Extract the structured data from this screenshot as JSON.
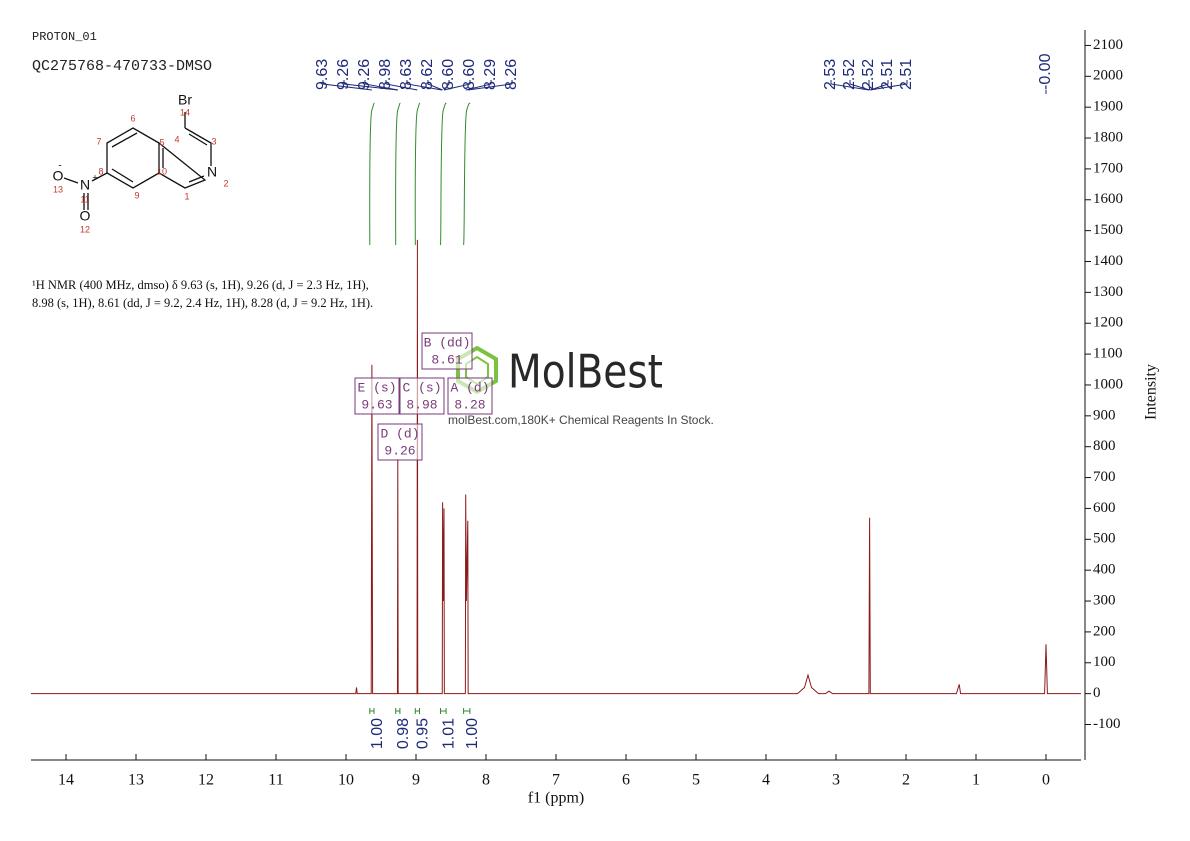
{
  "chart_data": {
    "type": "line",
    "header": "PROTON_01",
    "title": "QC275768-470733-DMSO",
    "description": "¹H NMR (400 MHz, dmso) δ 9.63 (s, 1H), 9.26 (d, J = 2.3 Hz, 1H), 8.98 (s, 1H), 8.61 (dd, J = 9.2, 2.4 Hz, 1H), 8.28 (d, J = 9.2 Hz, 1H).",
    "xlabel": "f1 (ppm)",
    "ylabel": "Intensity",
    "color": "#8b1a1a",
    "xlim": [
      14.5,
      -0.5
    ],
    "xticks": [
      14,
      13,
      12,
      11,
      10,
      9,
      8,
      7,
      6,
      5,
      4,
      3,
      2,
      1,
      0
    ],
    "ylim": [
      -215,
      2150
    ],
    "yticks": [
      -100,
      0,
      100,
      200,
      300,
      400,
      500,
      600,
      700,
      800,
      900,
      1000,
      1100,
      1200,
      1300,
      1400,
      1500,
      1600,
      1700,
      1800,
      1900,
      2000,
      2100
    ],
    "x": [
      14.5,
      9.9,
      9.86,
      9.85,
      9.84,
      9.66,
      9.64,
      9.63,
      9.62,
      9.6,
      9.28,
      9.265,
      9.26,
      9.255,
      9.24,
      9.0,
      8.985,
      8.98,
      8.975,
      8.96,
      8.64,
      8.625,
      8.62,
      8.61,
      8.6,
      8.595,
      8.58,
      8.31,
      8.295,
      8.29,
      8.28,
      8.26,
      8.255,
      8.24,
      3.55,
      3.45,
      3.4,
      3.35,
      3.25,
      3.15,
      3.1,
      3.05,
      2.56,
      2.53,
      2.52,
      2.51,
      2.48,
      1.28,
      1.24,
      1.22,
      1.18,
      0.02,
      0.0,
      -0.02,
      -0.5
    ],
    "values": [
      0,
      0,
      0,
      20,
      0,
      0,
      0,
      1065,
      0,
      0,
      0,
      0,
      760,
      0,
      0,
      0,
      0,
      1470,
      0,
      0,
      0,
      0,
      620,
      300,
      600,
      0,
      0,
      0,
      0,
      645,
      300,
      560,
      0,
      0,
      0,
      20,
      60,
      20,
      0,
      0,
      8,
      0,
      0,
      0,
      570,
      0,
      0,
      0,
      30,
      0,
      0,
      0,
      160,
      0,
      0
    ],
    "peak_labels": [
      9.63,
      9.26,
      9.26,
      8.98,
      8.63,
      8.62,
      {
        "value": 8.6,
        "label": "8.60"
      },
      {
        "value": 8.6,
        "label": "8.60"
      },
      8.29,
      8.26,
      2.53,
      2.52,
      2.52,
      2.51,
      2.51,
      {
        "value": 0,
        "label": "-0.00"
      }
    ],
    "peak_label_color": "#1e2a78",
    "integrals": {
      "values": [
        1,
        0.98,
        0.95,
        1.01,
        1
      ],
      "value_labels": [
        "1.00",
        "0.98",
        "0.95",
        "1.01",
        "1.00"
      ],
      "ranges": [
        [
          9.66,
          9.6
        ],
        [
          9.29,
          9.23
        ],
        [
          9.01,
          8.95
        ],
        [
          8.65,
          8.57
        ],
        [
          8.32,
          8.23
        ]
      ],
      "color": "#2e8b2e"
    },
    "multiplets": [
      {
        "title": "E (s)",
        "shift": 9.63
      },
      {
        "title": "C (s)",
        "shift": 8.98
      },
      {
        "title": "A (d)",
        "shift": 8.28
      },
      {
        "title": "B (dd)",
        "shift": 8.61
      },
      {
        "title": "D (d)",
        "shift": 9.26
      }
    ],
    "multiplet_color": "#7a3a7a",
    "structure": {
      "labels": [
        "Br",
        "14",
        "4",
        "3",
        "N",
        "2",
        "1",
        "10",
        "5",
        "6",
        "7",
        "8",
        "9",
        "N",
        "+",
        "11",
        "O",
        "-",
        "13",
        "O",
        "12"
      ]
    },
    "watermark": {
      "brand": "MolBest",
      "tagline": "molBest.com,180K+ Chemical Reagents In Stock."
    }
  }
}
